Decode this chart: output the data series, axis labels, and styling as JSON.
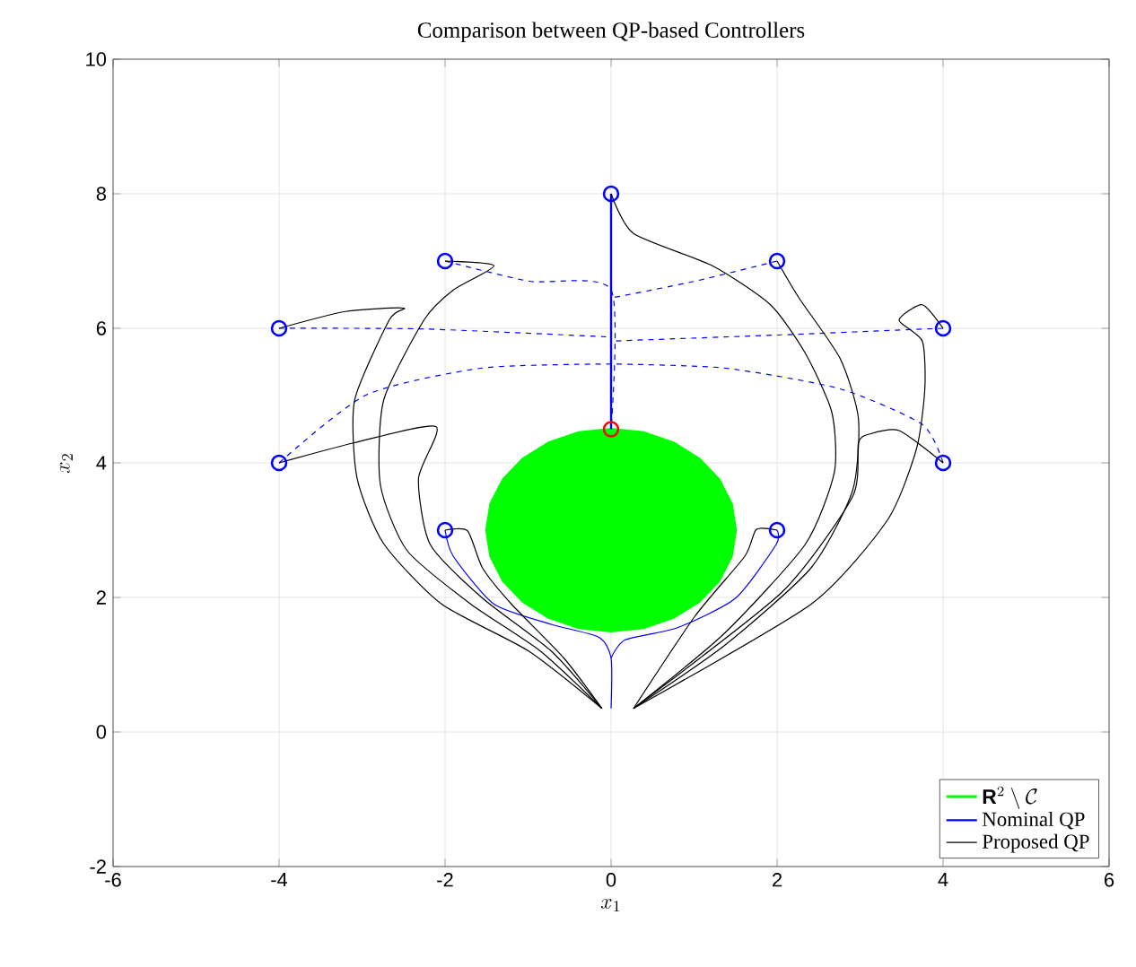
{
  "chart_data": {
    "type": "line",
    "title": "Comparison between QP-based Controllers",
    "xlabel": "x_1",
    "ylabel": "x_2",
    "xlim": [
      -6,
      6
    ],
    "ylim": [
      -2,
      10
    ],
    "xticks": [
      -6,
      -4,
      -2,
      0,
      2,
      4,
      6
    ],
    "yticks": [
      -2,
      0,
      2,
      4,
      6,
      8,
      10
    ],
    "grid": true,
    "legend": "bottom right",
    "series": [
      {
        "type": "area",
        "name": "\\mathbf{R}^2 \\setminus \\mathcal{C}",
        "color": "#00ff00",
        "x": [
          1.5,
          1.45,
          1.3,
          1.06,
          0.75,
          0.39,
          0,
          -0.39,
          -0.75,
          -1.06,
          -1.3,
          -1.45,
          -1.5,
          -1.45,
          -1.3,
          -1.06,
          -0.75,
          -0.39,
          0,
          0.39,
          0.75,
          1.06,
          1.3,
          1.45
        ],
        "values": [
          3,
          3.39,
          3.75,
          4.06,
          4.3,
          4.45,
          4.5,
          4.45,
          4.3,
          4.06,
          3.75,
          3.39,
          3,
          2.61,
          2.25,
          1.94,
          1.7,
          1.55,
          1.5,
          1.55,
          1.7,
          1.94,
          2.25,
          2.61
        ]
      },
      {
        "name": "Nominal QP",
        "color": "#0000ff",
        "line_style": "solid",
        "x": [
          0,
          0
        ],
        "values": [
          8,
          4.5
        ]
      },
      {
        "name": "Proposed QP",
        "color": "#000000",
        "line_style": "solid",
        "x": [
          0,
          0.27,
          1.22,
          1.92,
          2.34,
          2.66,
          2.69,
          2.34,
          1.36,
          0.27
        ],
        "values": [
          8,
          7.41,
          6.93,
          6.35,
          5.63,
          4.75,
          3.86,
          2.79,
          1.46,
          0.35
        ]
      },
      {
        "color": "#0000ff",
        "line_style": "dashed",
        "x": [
          -2,
          -0.99,
          0,
          0
        ],
        "values": [
          7,
          6.7,
          6.57,
          4.5
        ]
      },
      {
        "color": "#0000ff",
        "line_style": "dashed",
        "x": [
          2,
          1.01,
          0
        ],
        "values": [
          7,
          6.7,
          6.45
        ]
      },
      {
        "color": "#0000ff",
        "line_style": "dashed",
        "x": [
          -4,
          -2.25,
          0
        ],
        "values": [
          6,
          5.99,
          5.87
        ]
      },
      {
        "color": "#0000ff",
        "line_style": "dashed",
        "x": [
          4,
          2,
          0
        ],
        "values": [
          6,
          5.9,
          5.81
        ]
      },
      {
        "color": "#0000ff",
        "line_style": "dashed",
        "x": [
          -4,
          -2.95,
          -1.55,
          0
        ],
        "values": [
          4,
          5.01,
          5.41,
          5.47
        ]
      },
      {
        "color": "#0000ff",
        "line_style": "dashed",
        "x": [
          4,
          3.75,
          2.76,
          1.36,
          0
        ],
        "values": [
          4,
          4.57,
          5.1,
          5.41,
          5.47
        ]
      },
      {
        "color": "#0000ff",
        "line_style": "solid",
        "x": [
          -2,
          -1.9,
          -1.41,
          -0.72,
          -0.15,
          0,
          0
        ],
        "values": [
          3,
          2.61,
          1.9,
          1.6,
          1.41,
          1.1,
          0.35
        ]
      },
      {
        "color": "#0000ff",
        "line_style": "solid",
        "x": [
          2,
          1.99,
          1.5,
          0.8,
          0.17,
          0
        ],
        "values": [
          3,
          2.79,
          1.99,
          1.55,
          1.37,
          1.1
        ]
      },
      {
        "color": "#000000",
        "line_style": "solid",
        "x": [
          -4,
          -3.2,
          -2.5,
          -2.67,
          -3.09,
          -3.06,
          -2.74,
          -2.04,
          -0.99,
          -0.11
        ],
        "values": [
          6,
          6.25,
          6.3,
          6.13,
          4.93,
          3.77,
          2.8,
          1.9,
          1.2,
          0.35
        ]
      },
      {
        "color": "#000000",
        "line_style": "solid",
        "x": [
          -2,
          -1.41,
          -1.9,
          -2.25,
          -2.74,
          -2.78,
          -2.46,
          -1.69,
          -0.85,
          -0.11
        ],
        "values": [
          7,
          6.93,
          6.57,
          6.13,
          4.93,
          3.68,
          2.7,
          1.9,
          1.2,
          0.35
        ]
      },
      {
        "color": "#000000",
        "line_style": "solid",
        "x": [
          -4,
          -3.09,
          -2.11,
          -2.32,
          -2.18,
          -1.55,
          -0.71,
          -0.11
        ],
        "values": [
          4,
          4.3,
          4.54,
          3.77,
          2.79,
          1.99,
          1.19,
          0.35
        ]
      },
      {
        "color": "#000000",
        "line_style": "solid",
        "x": [
          -2,
          -1.73,
          -1.55,
          -1.2,
          -0.57,
          -0.11
        ],
        "values": [
          3,
          2.99,
          2.44,
          1.9,
          1.1,
          0.35
        ]
      },
      {
        "color": "#000000",
        "line_style": "solid",
        "x": [
          2,
          2.27,
          2.76,
          2.98,
          2.91,
          2.41,
          1.36,
          0.27
        ],
        "values": [
          7,
          6.44,
          5.55,
          4.66,
          3.59,
          2.44,
          1.28,
          0.35
        ]
      },
      {
        "color": "#000000",
        "line_style": "solid",
        "x": [
          4,
          3.75,
          3.47,
          3.75,
          3.78,
          3.68,
          3.33,
          2.41,
          0.27
        ],
        "values": [
          6,
          6.35,
          6.12,
          5.81,
          5.1,
          4.21,
          3.15,
          1.9,
          0.35
        ]
      },
      {
        "color": "#000000",
        "line_style": "solid",
        "x": [
          4,
          3.47,
          3.12,
          2.98,
          2.91,
          2.06,
          0.27
        ],
        "values": [
          4,
          4.48,
          4.43,
          4.3,
          3.5,
          2.08,
          0.35
        ]
      },
      {
        "color": "#000000",
        "line_style": "solid",
        "x": [
          2,
          1.75,
          1.61,
          1.01,
          0.27
        ],
        "values": [
          3,
          3.01,
          2.61,
          1.72,
          0.35
        ]
      },
      {
        "type": "scatter",
        "marker": "circle",
        "color": "#0000ff",
        "x": [
          0,
          -2,
          2,
          -4,
          4,
          -4,
          4,
          -2,
          2
        ],
        "values": [
          8,
          7,
          7,
          6,
          6,
          4,
          4,
          3,
          3
        ]
      },
      {
        "type": "scatter",
        "marker": "circle",
        "color": "#ff0000",
        "x": [
          0
        ],
        "values": [
          4.5
        ]
      }
    ]
  }
}
